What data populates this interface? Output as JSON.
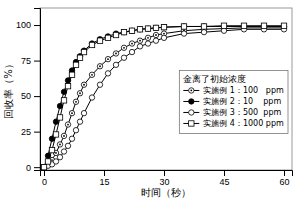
{
  "chart_data": {
    "type": "line",
    "xlabel": "时间（秒）",
    "ylabel": "回收率（%）",
    "legend_title": "金离了初始浓度",
    "x": [
      0,
      1,
      2,
      3,
      4,
      5,
      6,
      7,
      8,
      9,
      10,
      12,
      14,
      16,
      18,
      20,
      22,
      24,
      26,
      28,
      30,
      35,
      40,
      45,
      50,
      55,
      60
    ],
    "series": [
      {
        "name": "实施例 1：100   ppm",
        "color": "black",
        "marker": "circle-open-dot",
        "line_style": "solid",
        "values": [
          0,
          2,
          5,
          10,
          16,
          22,
          30,
          38,
          46,
          52,
          58,
          65,
          71,
          76,
          80,
          84,
          87,
          89,
          91,
          93,
          94,
          96,
          97,
          97.5,
          98,
          98,
          98
        ]
      },
      {
        "name": "实施例 2：10    ppm",
        "color": "black",
        "marker": "circle",
        "line_style": "solid",
        "values": [
          0,
          8,
          20,
          32,
          43,
          53,
          61,
          68,
          74,
          78,
          82,
          87,
          90,
          92,
          94,
          95,
          96,
          97,
          97.5,
          98,
          98.5,
          99,
          99,
          99,
          99,
          99,
          99
        ]
      },
      {
        "name": "实施例 3：500  ppm",
        "color": "black",
        "marker": "circle-open",
        "line_style": "solid",
        "values": [
          0,
          1,
          2,
          4,
          7,
          11,
          15,
          20,
          26,
          32,
          38,
          49,
          58,
          66,
          72,
          77,
          81,
          85,
          87,
          89,
          91,
          94,
          95,
          96,
          97,
          97,
          97
        ]
      },
      {
        "name": "实施例 4：1000 ppm",
        "color": "black",
        "marker": "square-open",
        "line_style": "solid",
        "values": [
          0,
          4,
          12,
          23,
          35,
          47,
          57,
          65,
          72,
          77,
          81,
          86,
          89,
          91,
          93,
          95,
          96,
          97,
          97.5,
          98,
          98.5,
          99,
          99,
          99.5,
          99.5,
          99.5,
          99.5
        ]
      }
    ],
    "xlim": [
      -1,
      62
    ],
    "ylim": [
      -2,
      112
    ],
    "xticks": [
      0,
      15,
      30,
      45,
      60
    ],
    "yticks": [
      0,
      25,
      50,
      75,
      100
    ],
    "grid": false,
    "legend": "right"
  }
}
